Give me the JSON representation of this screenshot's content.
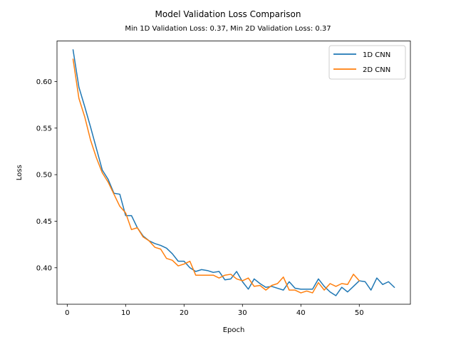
{
  "chart_data": {
    "type": "line",
    "title": "Model Validation Loss Comparison",
    "subtitle": "Min 1D Validation Loss: 0.37, Min 2D Validation Loss: 0.37",
    "xlabel": "Epoch",
    "ylabel": "Loss",
    "xlim": [
      -1.75,
      58.75
    ],
    "ylim": [
      0.3608,
      0.6436
    ],
    "xticks": [
      0,
      10,
      20,
      30,
      40,
      50
    ],
    "yticks": [
      0.4,
      0.45,
      0.5,
      0.55,
      0.6
    ],
    "ytick_labels": [
      "0.40",
      "0.45",
      "0.50",
      "0.55",
      "0.60"
    ],
    "grid": false,
    "legend_position": "top-right",
    "series": [
      {
        "name": "1D CNN",
        "color": "#1f77b4",
        "x": [
          1,
          2,
          3,
          4,
          5,
          6,
          7,
          8,
          9,
          10,
          11,
          12,
          13,
          14,
          15,
          16,
          17,
          18,
          19,
          20,
          21,
          22,
          23,
          24,
          25,
          26,
          27,
          28,
          29,
          30,
          31,
          32,
          33,
          34,
          35,
          36,
          37,
          38,
          39,
          40,
          41,
          42,
          43,
          44,
          45,
          46,
          47,
          48,
          49,
          50,
          51,
          52,
          53,
          54,
          55,
          56
        ],
        "values": [
          0.634,
          0.594,
          0.573,
          0.551,
          0.528,
          0.505,
          0.495,
          0.48,
          0.479,
          0.456,
          0.456,
          0.443,
          0.434,
          0.429,
          0.426,
          0.424,
          0.421,
          0.415,
          0.407,
          0.407,
          0.4,
          0.396,
          0.398,
          0.397,
          0.395,
          0.396,
          0.387,
          0.388,
          0.396,
          0.385,
          0.377,
          0.388,
          0.383,
          0.379,
          0.38,
          0.378,
          0.376,
          0.385,
          0.378,
          0.377,
          0.377,
          0.377,
          0.388,
          0.38,
          0.374,
          0.37,
          0.379,
          0.374,
          0.38,
          0.386,
          0.385,
          0.376,
          0.389,
          0.382,
          0.385,
          0.379
        ]
      },
      {
        "name": "2D CNN",
        "color": "#ff7f0e",
        "x": [
          1,
          2,
          3,
          4,
          5,
          6,
          7,
          8,
          9,
          10,
          11,
          12,
          13,
          14,
          15,
          16,
          17,
          18,
          19,
          20,
          21,
          22,
          23,
          24,
          25,
          26,
          27,
          28,
          29,
          30,
          31,
          32,
          33,
          34,
          35,
          36,
          37,
          38,
          39,
          40,
          41,
          42,
          43,
          44,
          45,
          46,
          47,
          48,
          49,
          50
        ],
        "values": [
          0.624,
          0.582,
          0.562,
          0.537,
          0.518,
          0.502,
          0.492,
          0.479,
          0.466,
          0.459,
          0.441,
          0.443,
          0.433,
          0.429,
          0.422,
          0.42,
          0.41,
          0.408,
          0.402,
          0.404,
          0.407,
          0.392,
          0.392,
          0.392,
          0.392,
          0.389,
          0.392,
          0.393,
          0.388,
          0.386,
          0.389,
          0.38,
          0.381,
          0.376,
          0.381,
          0.383,
          0.39,
          0.376,
          0.376,
          0.373,
          0.375,
          0.373,
          0.384,
          0.376,
          0.383,
          0.38,
          0.383,
          0.382,
          0.393,
          0.386
        ]
      }
    ]
  }
}
